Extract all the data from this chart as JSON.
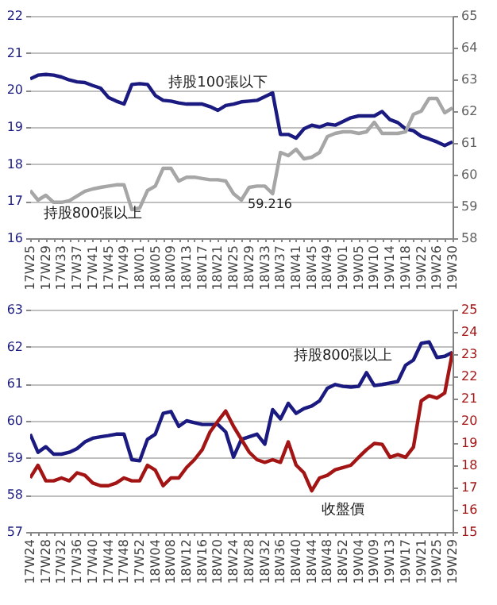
{
  "chart_data": [
    {
      "type": "line",
      "categories": [
        "17W25",
        null,
        "17W29",
        null,
        "17W33",
        null,
        "17W37",
        null,
        "17W41",
        null,
        "17W45",
        null,
        "17W49",
        null,
        "18W01",
        null,
        "18W05",
        null,
        "18W09",
        null,
        "18W13",
        null,
        "18W17",
        null,
        "18W21",
        null,
        "18W25",
        null,
        "18W29",
        null,
        "18W33",
        null,
        "18W37",
        null,
        "18W41",
        null,
        "18W45",
        null,
        "18W49",
        null,
        "19W01",
        null,
        "19W05",
        null,
        "19W10",
        null,
        "19W14",
        null,
        "19W18",
        null,
        "19W22",
        null,
        "19W26",
        null,
        "19W30"
      ],
      "series": [
        {
          "name": "持股100張以下",
          "color": "#1a1a80",
          "values": [
            20.3,
            20.4,
            20.42,
            20.4,
            20.35,
            20.27,
            20.22,
            20.2,
            20.12,
            20.05,
            19.8,
            19.7,
            19.62,
            20.15,
            20.17,
            20.15,
            19.85,
            19.72,
            19.7,
            19.65,
            19.62,
            19.62,
            19.62,
            19.55,
            19.45,
            19.58,
            19.62,
            19.68,
            19.7,
            19.72,
            19.82,
            19.92,
            18.8,
            18.8,
            18.7,
            18.95,
            19.05,
            19.0,
            19.08,
            19.05,
            19.15,
            19.25,
            19.3,
            19.3,
            19.3,
            19.42,
            19.2,
            19.12,
            18.95,
            18.9,
            18.75,
            18.68,
            18.6,
            18.5,
            18.6
          ]
        },
        {
          "name": "持股800張以上",
          "color": "#a6a6a6",
          "axis": "y2",
          "values": [
            59.5,
            59.2,
            59.35,
            59.13,
            59.13,
            59.18,
            59.33,
            59.48,
            59.55,
            59.6,
            59.64,
            59.68,
            59.68,
            58.9,
            58.95,
            59.5,
            59.64,
            60.2,
            60.2,
            59.8,
            59.92,
            59.92,
            59.88,
            59.84,
            59.84,
            59.8,
            59.4,
            59.2,
            59.6,
            59.64,
            59.64,
            59.4,
            60.7,
            60.6,
            60.8,
            60.5,
            60.55,
            60.7,
            61.2,
            61.3,
            61.35,
            61.35,
            61.3,
            61.35,
            61.65,
            61.3,
            61.3,
            61.3,
            61.35,
            61.9,
            62.0,
            62.4,
            62.4,
            61.95,
            62.1
          ]
        }
      ],
      "ylim": [
        16,
        22
      ],
      "yticks": [
        16,
        17,
        18,
        19,
        20,
        21,
        22
      ],
      "y2lim": [
        58,
        65
      ],
      "y2ticks": [
        58,
        59,
        60,
        61,
        62,
        63,
        64,
        65
      ],
      "grid": "y",
      "annotations": [
        "59.216"
      ]
    },
    {
      "type": "line",
      "categories": [
        "17W24",
        null,
        "17W28",
        null,
        "17W32",
        null,
        "17W36",
        null,
        "17W40",
        null,
        "17W44",
        null,
        "17W48",
        null,
        "17W52",
        null,
        "18W04",
        null,
        "18W08",
        null,
        "18W12",
        null,
        "18W16",
        null,
        "18W20",
        null,
        "18W24",
        null,
        "18W28",
        null,
        "18W32",
        null,
        "18W36",
        null,
        "18W40",
        null,
        "18W44",
        null,
        "18W48",
        null,
        "18W52",
        null,
        "19W04",
        null,
        "19W09",
        null,
        "19W13",
        null,
        "19W17",
        null,
        "19W21",
        null,
        "19W25",
        null,
        "19W29"
      ],
      "series": [
        {
          "name": "持股800張以上",
          "color": "#1a1a80",
          "values": [
            59.64,
            59.15,
            59.3,
            59.1,
            59.1,
            59.15,
            59.25,
            59.43,
            59.53,
            59.57,
            59.6,
            59.64,
            59.64,
            58.95,
            58.92,
            59.5,
            59.64,
            60.2,
            60.25,
            59.85,
            60.0,
            59.95,
            59.9,
            59.9,
            59.9,
            59.7,
            59.02,
            59.5,
            59.57,
            59.64,
            59.37,
            60.3,
            60.05,
            60.47,
            60.2,
            60.33,
            60.4,
            60.54,
            60.88,
            60.98,
            60.93,
            60.91,
            60.93,
            61.3,
            60.95,
            60.98,
            61.02,
            61.06,
            61.5,
            61.64,
            62.09,
            62.13,
            61.71,
            61.74,
            61.85
          ]
        },
        {
          "name": "收盤價",
          "color": "#a31515",
          "axis": "y2",
          "values": [
            17.43,
            18.0,
            17.3,
            17.3,
            17.43,
            17.3,
            17.66,
            17.55,
            17.2,
            17.08,
            17.08,
            17.2,
            17.43,
            17.3,
            17.3,
            18.0,
            17.78,
            17.08,
            17.43,
            17.43,
            17.9,
            18.25,
            18.7,
            19.5,
            19.98,
            20.44,
            19.75,
            19.17,
            18.59,
            18.25,
            18.13,
            18.25,
            18.13,
            19.05,
            18.01,
            17.66,
            16.85,
            17.43,
            17.55,
            17.8,
            17.9,
            18.0,
            18.36,
            18.7,
            18.98,
            18.94,
            18.36,
            18.48,
            18.36,
            18.82,
            20.9,
            21.13,
            21.02,
            21.25,
            23.1
          ]
        }
      ],
      "ylim": [
        57,
        63
      ],
      "yticks": [
        57,
        58,
        59,
        60,
        61,
        62,
        63
      ],
      "y2lim": [
        15,
        25
      ],
      "y2ticks": [
        15,
        16,
        17,
        18,
        19,
        20,
        21,
        22,
        23,
        24,
        25
      ],
      "grid": "y"
    }
  ]
}
